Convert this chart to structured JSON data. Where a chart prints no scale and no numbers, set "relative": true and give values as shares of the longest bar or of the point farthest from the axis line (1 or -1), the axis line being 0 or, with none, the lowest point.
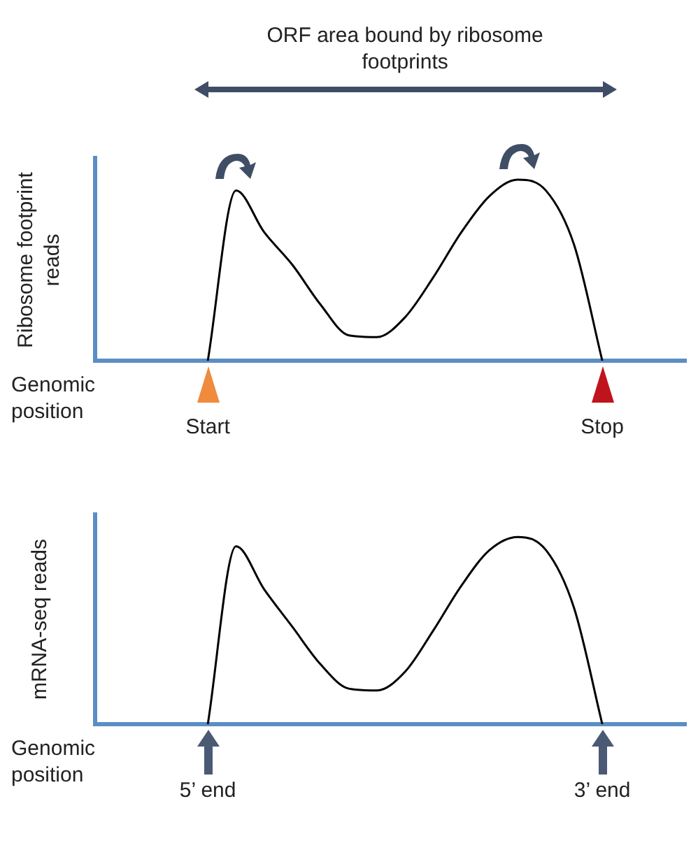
{
  "chart_data": [
    {
      "type": "line",
      "relative": true,
      "title": "ORF area bound by ribosome footprints",
      "ylabel": "Ribosome footprint reads",
      "xlabel": "Genomic position",
      "categories": [
        null,
        null,
        null,
        null,
        null,
        null,
        null,
        null,
        null,
        null,
        null,
        null,
        null,
        null,
        null,
        null,
        null,
        null,
        null,
        null,
        null,
        null
      ],
      "values": [
        null,
        null,
        null,
        null,
        0,
        0.94,
        0.71,
        0.53,
        0.31,
        0.14,
        0.13,
        0.24,
        0.46,
        0.71,
        0.91,
        1.0,
        0.94,
        0.64,
        0,
        null,
        null,
        null
      ],
      "color": "#000000",
      "marker": "none",
      "annotations": [
        "Start",
        "Stop"
      ],
      "tick_labels": false
    },
    {
      "type": "line",
      "relative": true,
      "ylabel": "mRNA-seq reads",
      "xlabel": "Genomic position",
      "categories": [
        null,
        null,
        null,
        null,
        null,
        null,
        null,
        null,
        null,
        null,
        null,
        null,
        null,
        null,
        null,
        null,
        null,
        null,
        null,
        null,
        null,
        null
      ],
      "values": [
        null,
        null,
        null,
        null,
        0,
        0.95,
        0.72,
        0.52,
        0.32,
        0.19,
        0.18,
        0.28,
        0.5,
        0.74,
        0.93,
        1.0,
        0.93,
        0.62,
        0,
        null,
        null,
        null
      ],
      "color": "#000000",
      "marker": "none",
      "annotations": [
        "5’ end",
        "3’ end"
      ],
      "tick_labels": false
    }
  ]
}
